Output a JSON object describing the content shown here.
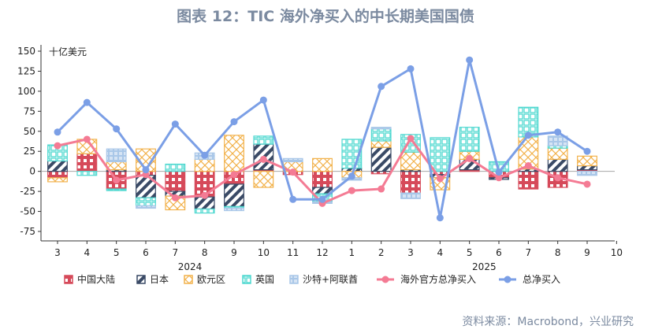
{
  "title": "图表 12：TIC 海外净买入的中长期美国国债",
  "source": "资料来源：Macrobond，兴业研究",
  "chart_data": {
    "type": "bar",
    "unit_label": "十亿美元",
    "ylim": [
      -75,
      150
    ],
    "yticks": [
      -75,
      -50,
      -25,
      0,
      25,
      50,
      75,
      100,
      125,
      150
    ],
    "categories": [
      "3",
      "4",
      "5",
      "6",
      "7",
      "8",
      "9",
      "10",
      "11",
      "12",
      "1",
      "2",
      "3",
      "4",
      "5",
      "6",
      "7",
      "8",
      "9",
      "10"
    ],
    "year_labels": [
      {
        "label": "2024",
        "from_index": 0,
        "to_index": 9
      },
      {
        "label": "2025",
        "from_index": 10,
        "to_index": 19
      }
    ],
    "bar_series": [
      {
        "name": "中国大陆",
        "color": "#d64a5a",
        "values": [
          -8,
          22,
          -22,
          -5,
          -25,
          -32,
          -16,
          2,
          -4,
          -20,
          0,
          -3,
          -27,
          -4,
          2,
          -8,
          -22,
          -20,
          2,
          null
        ]
      },
      {
        "name": "日本",
        "color": "#3a4a66",
        "values": [
          13,
          0,
          2,
          -28,
          -6,
          -15,
          -28,
          32,
          0,
          -8,
          4,
          30,
          2,
          -4,
          13,
          -2,
          3,
          15,
          5,
          null
        ]
      },
      {
        "name": "欧元区",
        "color": "#f2b24c",
        "values": [
          -5,
          18,
          10,
          28,
          -17,
          15,
          45,
          -20,
          12,
          16,
          -8,
          8,
          22,
          -15,
          10,
          0,
          40,
          14,
          12,
          null
        ]
      },
      {
        "name": "英国",
        "color": "#4fd8d0",
        "values": [
          20,
          -5,
          -2,
          -10,
          9,
          -5,
          -2,
          10,
          0,
          -10,
          36,
          15,
          22,
          42,
          30,
          12,
          37,
          3,
          0,
          null
        ]
      },
      {
        "name": "沙特+阿联酋",
        "color": "#a9c7e8",
        "values": [
          0,
          0,
          16,
          -3,
          0,
          8,
          -3,
          0,
          4,
          -2,
          -3,
          2,
          -7,
          0,
          0,
          0,
          0,
          12,
          -5,
          null
        ]
      }
    ],
    "line_series": [
      {
        "name": "海外官方总净买入",
        "color": "#f47b94",
        "values": [
          32,
          40,
          -11,
          -4,
          -33,
          -30,
          -4,
          15,
          -1,
          -40,
          -24,
          -22,
          41,
          -9,
          16,
          -8,
          7,
          -8,
          -16,
          null
        ]
      },
      {
        "name": "总净买入",
        "color": "#7b9fe6",
        "values": [
          49,
          86,
          53,
          2,
          59,
          20,
          62,
          89,
          -35,
          -35,
          -6,
          106,
          128,
          -58,
          139,
          -1,
          45,
          49,
          25,
          null
        ]
      }
    ],
    "grid": false,
    "legend_position": "bottom"
  }
}
